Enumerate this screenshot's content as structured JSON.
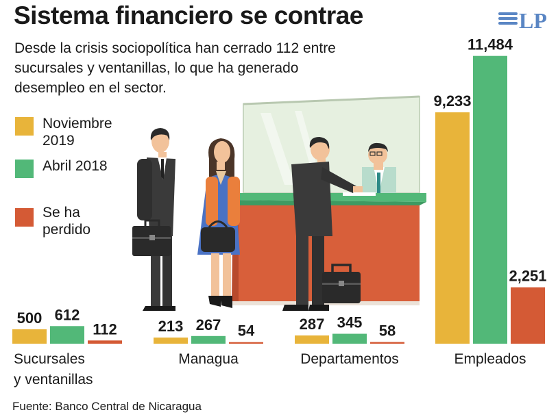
{
  "title": "Sistema financiero se contrae",
  "subtitle": "Desde la crisis sociopolítica han cerrado 112 entre sucursales y ventanillas, lo que ha generado desempleo en el sector.",
  "logo_text": "LP",
  "source": "Fuente: Banco Central de Nicaragua",
  "colors": {
    "noviembre_2019": "#e8b43a",
    "abril_2018": "#52b878",
    "perdido": "#d45a35"
  },
  "legend": [
    {
      "label": "Noviembre 2019",
      "color": "#e8b43a"
    },
    {
      "label": "Abril 2018",
      "color": "#52b878"
    },
    {
      "label": "Se ha perdido",
      "color": "#d45a35"
    }
  ],
  "chart_data": {
    "type": "bar",
    "title": "Sistema financiero se contrae",
    "categories": [
      "Sucursales y ventanillas",
      "Managua",
      "Departamentos",
      "Empleados"
    ],
    "series": [
      {
        "name": "Noviembre 2019",
        "values": [
          500,
          213,
          287,
          9233
        ],
        "labels": [
          "500",
          "213",
          "287",
          "9,233"
        ]
      },
      {
        "name": "Abril 2018",
        "values": [
          612,
          267,
          345,
          11484
        ],
        "labels": [
          "612",
          "267",
          "345",
          "11,484"
        ]
      },
      {
        "name": "Se ha perdido",
        "values": [
          112,
          54,
          58,
          2251
        ],
        "labels": [
          "112",
          "54",
          "58",
          "2,251"
        ]
      }
    ],
    "notes": "Empleados group drawn on a separate larger scale than the branch counts"
  }
}
